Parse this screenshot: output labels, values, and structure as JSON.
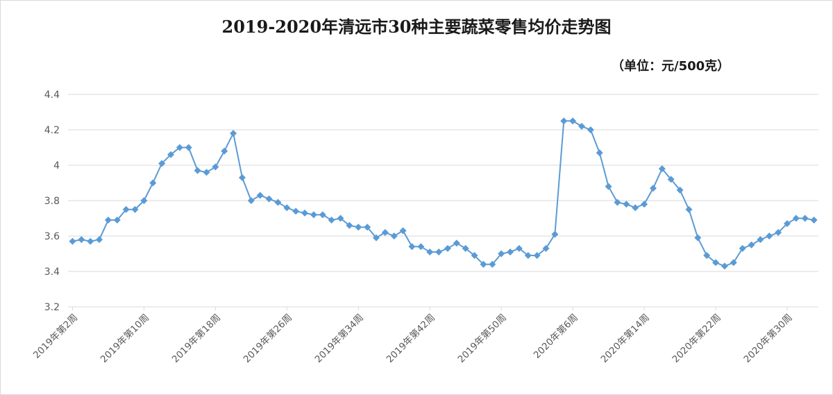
{
  "chart_data": {
    "type": "line",
    "title": "2019-2020年清远市30种主要蔬菜零售均价走势图",
    "unit_note": "（单位：元/500克）",
    "xlabel": "",
    "ylabel": "",
    "ylim": [
      3.2,
      4.4
    ],
    "yticks": [
      3.2,
      3.4,
      3.6,
      3.8,
      4,
      4.2,
      4.4
    ],
    "grid": true,
    "legend": "none",
    "line_color": "#5b9bd5",
    "x_tick_labels": [
      {
        "index": 0,
        "label": "2019年第2周"
      },
      {
        "index": 8,
        "label": "2019年第10周"
      },
      {
        "index": 16,
        "label": "2019年第18周"
      },
      {
        "index": 24,
        "label": "2019年第26周"
      },
      {
        "index": 32,
        "label": "2019年第34周"
      },
      {
        "index": 40,
        "label": "2019年第42周"
      },
      {
        "index": 48,
        "label": "2019年第50周"
      },
      {
        "index": 56,
        "label": "2020年第6周"
      },
      {
        "index": 64,
        "label": "2020年第14周"
      },
      {
        "index": 72,
        "label": "2020年第22周"
      },
      {
        "index": 80,
        "label": "2020年第30周"
      }
    ],
    "series": [
      {
        "values": [
          3.57,
          3.58,
          3.57,
          3.58,
          3.69,
          3.69,
          3.75,
          3.75,
          3.8,
          3.9,
          4.01,
          4.06,
          4.1,
          4.1,
          3.97,
          3.96,
          3.99,
          4.08,
          4.18,
          3.93,
          3.8,
          3.83,
          3.81,
          3.79,
          3.76,
          3.74,
          3.73,
          3.72,
          3.72,
          3.69,
          3.7,
          3.66,
          3.65,
          3.65,
          3.59,
          3.62,
          3.6,
          3.63,
          3.54,
          3.54,
          3.51,
          3.51,
          3.53,
          3.56,
          3.53,
          3.49,
          3.44,
          3.44,
          3.5,
          3.51,
          3.53,
          3.49,
          3.49,
          3.53,
          3.61,
          4.25,
          4.25,
          4.22,
          4.2,
          4.07,
          3.88,
          3.79,
          3.78,
          3.76,
          3.78,
          3.87,
          3.98,
          3.92,
          3.86,
          3.75,
          3.59,
          3.49,
          3.45,
          3.43,
          3.45,
          3.53,
          3.55,
          3.58,
          3.6,
          3.62,
          3.67,
          3.7,
          3.7,
          3.69
        ]
      }
    ]
  }
}
